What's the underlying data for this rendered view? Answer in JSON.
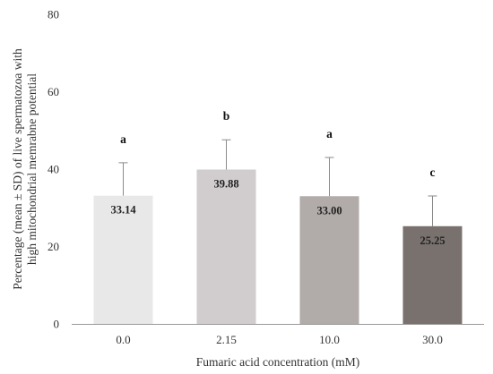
{
  "chart_data": {
    "type": "bar",
    "categories": [
      "0.0",
      "2.15",
      "10.0",
      "30.0"
    ],
    "values": [
      33.14,
      39.88,
      33.0,
      25.25
    ],
    "errors": [
      8.5,
      7.7,
      10.0,
      7.8
    ],
    "data_labels": [
      "33.14",
      "39.88",
      "33.00",
      "25.25"
    ],
    "significance": [
      "a",
      "b",
      "a",
      "c"
    ],
    "bar_colors": [
      "#e8e8e8",
      "#d1cccd",
      "#b1aba9",
      "#78716e"
    ],
    "xlabel": "Fumaric acid concentration (mM)",
    "ylabel_lines": [
      "Percentage (mean ± SD) of live spermatozoa with",
      "high mitochondrial memrabne potential"
    ],
    "ylim": [
      0,
      80
    ],
    "yticks": [
      0,
      20,
      40,
      60,
      80
    ],
    "ytick_labels": [
      "0",
      "20",
      "40",
      "60",
      "80"
    ],
    "grid": false,
    "legend": "none"
  }
}
